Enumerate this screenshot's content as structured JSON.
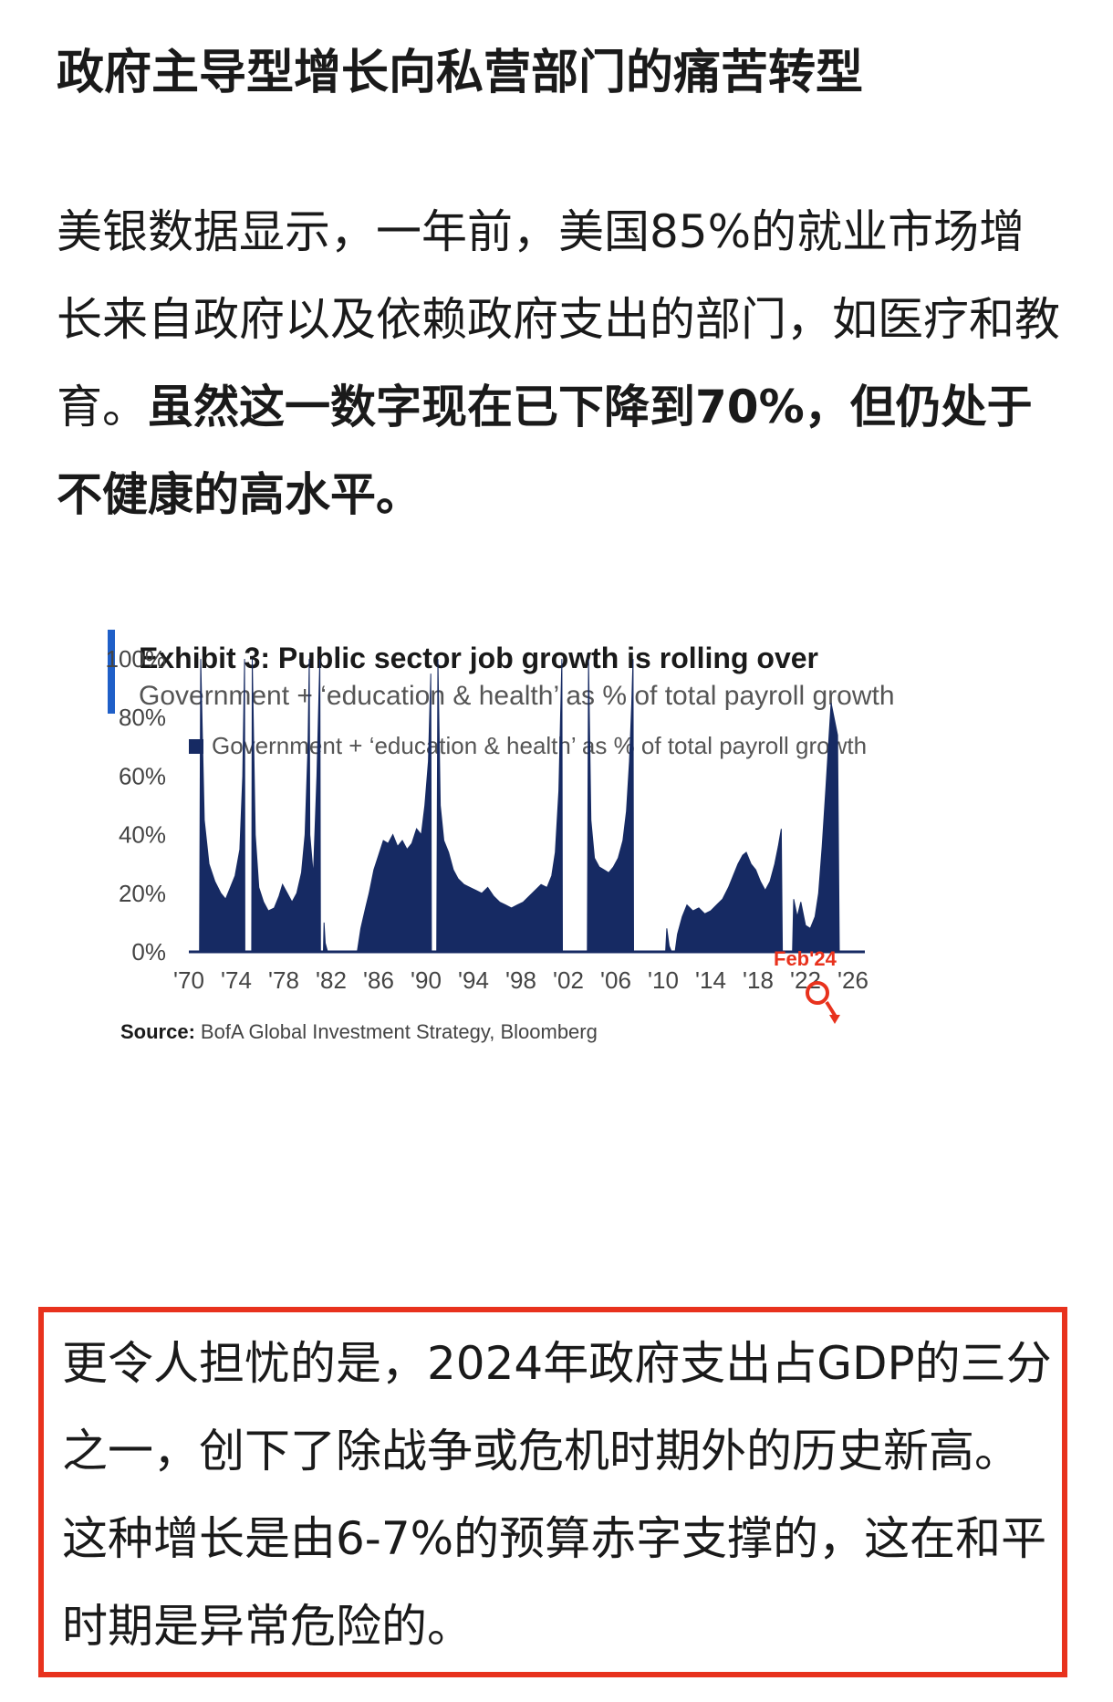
{
  "article": {
    "heading": "政府主导型增长向私营部门的痛苦转型",
    "para1_normal": "美银数据显示，一年前，美国85%的就业市场增长来自政府以及依赖政府支出的部门，如医疗和教育。",
    "para1_bold": "虽然这一数字现在已下降到70%，但仍处于不健康的高水平。",
    "para2": "更令人担忧的是，2024年政府支出占GDP的三分之一，创下了除战争或危机时期外的历史新高。这种增长是由6-7%的预算赤字支撑的，这在和平时期是异常危险的。"
  },
  "colors": {
    "accent_bar": "#1f5fc8",
    "series": "#162a63",
    "annotation": "#e8321d",
    "callout_border": "#e8321d"
  },
  "chart_data": {
    "type": "area",
    "title": "Exhibit 3: Public sector job growth is rolling over",
    "subtitle": "Government + ‘education & health’ as % of total payroll growth",
    "legend": "Government + ‘education & health’ as % of total payroll growth",
    "legend_position": "top",
    "annotation": "Feb'24",
    "source_label": "Source:",
    "source_text": "BofA Global Investment Strategy, Bloomberg",
    "xlim": [
      1970,
      2027
    ],
    "ylim": [
      0,
      100
    ],
    "grid": false,
    "x_ticks": [
      "'70",
      "'74",
      "'78",
      "'82",
      "'86",
      "'90",
      "'94",
      "'98",
      "'02",
      "'06",
      "'10",
      "'14",
      "'18",
      "'22",
      "'26"
    ],
    "y_ticks": [
      "100%",
      "80%",
      "60%",
      "40%",
      "20%",
      "0%"
    ],
    "series": [
      {
        "name": "Government + ‘education & health’ as % of total payroll growth",
        "segments": [
          [
            [
              1970.9,
              0
            ],
            [
              1971.0,
              100
            ],
            [
              1971.3,
              45
            ],
            [
              1971.7,
              30
            ],
            [
              1972.2,
              24
            ],
            [
              1972.7,
              20
            ],
            [
              1973.1,
              18
            ],
            [
              1973.5,
              22
            ],
            [
              1973.9,
              26
            ],
            [
              1974.3,
              35
            ],
            [
              1974.55,
              60
            ],
            [
              1974.7,
              100
            ],
            [
              1974.72,
              0
            ]
          ],
          [
            [
              1975.3,
              0
            ],
            [
              1975.35,
              100
            ],
            [
              1975.6,
              40
            ],
            [
              1975.9,
              22
            ],
            [
              1976.3,
              17
            ],
            [
              1976.7,
              14
            ],
            [
              1977.2,
              15
            ],
            [
              1977.6,
              19
            ],
            [
              1977.9,
              23
            ],
            [
              1978.3,
              20
            ],
            [
              1978.7,
              17
            ],
            [
              1979.1,
              20
            ],
            [
              1979.5,
              27
            ],
            [
              1979.8,
              40
            ],
            [
              1980.05,
              70
            ],
            [
              1980.15,
              100
            ],
            [
              1980.2,
              40
            ],
            [
              1980.5,
              26
            ],
            [
              1980.8,
              60
            ],
            [
              1981.05,
              100
            ],
            [
              1981.1,
              0
            ]
          ],
          [
            [
              1981.35,
              0
            ],
            [
              1981.4,
              10
            ],
            [
              1981.5,
              3
            ],
            [
              1981.7,
              0
            ]
          ],
          [
            [
              1984.2,
              0
            ],
            [
              1984.5,
              8
            ],
            [
              1984.9,
              15
            ],
            [
              1985.2,
              20
            ],
            [
              1985.6,
              28
            ],
            [
              1986.0,
              33
            ],
            [
              1986.4,
              38
            ],
            [
              1986.8,
              37
            ],
            [
              1987.2,
              40
            ],
            [
              1987.6,
              36
            ],
            [
              1988.0,
              38
            ],
            [
              1988.4,
              35
            ],
            [
              1988.8,
              37
            ],
            [
              1989.2,
              42
            ],
            [
              1989.6,
              40
            ],
            [
              1989.9,
              50
            ],
            [
              1990.2,
              65
            ],
            [
              1990.4,
              95
            ],
            [
              1990.45,
              0
            ]
          ],
          [
            [
              1990.9,
              0
            ],
            [
              1991.0,
              100
            ],
            [
              1991.2,
              50
            ],
            [
              1991.5,
              38
            ],
            [
              1991.9,
              34
            ],
            [
              1992.3,
              28
            ],
            [
              1992.7,
              25
            ],
            [
              1993.2,
              23
            ],
            [
              1993.7,
              22
            ],
            [
              1994.2,
              21
            ],
            [
              1994.7,
              20
            ],
            [
              1995.2,
              22
            ],
            [
              1995.7,
              19
            ],
            [
              1996.2,
              17
            ],
            [
              1996.7,
              16
            ],
            [
              1997.2,
              15
            ],
            [
              1997.7,
              16
            ],
            [
              1998.2,
              17
            ],
            [
              1998.7,
              19
            ],
            [
              1999.2,
              21
            ],
            [
              1999.7,
              23
            ],
            [
              2000.2,
              22
            ],
            [
              2000.6,
              26
            ],
            [
              2000.9,
              34
            ],
            [
              2001.2,
              55
            ],
            [
              2001.45,
              100
            ],
            [
              2001.5,
              0
            ]
          ],
          [
            [
              2003.6,
              0
            ],
            [
              2003.7,
              100
            ],
            [
              2003.9,
              45
            ],
            [
              2004.2,
              32
            ],
            [
              2004.6,
              29
            ],
            [
              2005.0,
              28
            ],
            [
              2005.4,
              27
            ],
            [
              2005.8,
              29
            ],
            [
              2006.2,
              32
            ],
            [
              2006.6,
              38
            ],
            [
              2006.9,
              48
            ],
            [
              2007.15,
              65
            ],
            [
              2007.35,
              85
            ],
            [
              2007.45,
              100
            ],
            [
              2007.5,
              0
            ]
          ],
          [
            [
              2010.2,
              0
            ],
            [
              2010.3,
              8
            ],
            [
              2010.5,
              2
            ],
            [
              2010.7,
              0
            ]
          ],
          [
            [
              2011.0,
              0
            ],
            [
              2011.2,
              6
            ],
            [
              2011.6,
              12
            ],
            [
              2012.0,
              16
            ],
            [
              2012.5,
              14
            ],
            [
              2013.0,
              15
            ],
            [
              2013.5,
              13
            ],
            [
              2014.0,
              14
            ],
            [
              2014.5,
              16
            ],
            [
              2015.0,
              18
            ],
            [
              2015.5,
              22
            ],
            [
              2015.9,
              26
            ],
            [
              2016.3,
              30
            ],
            [
              2016.7,
              33
            ],
            [
              2017.0,
              34
            ],
            [
              2017.4,
              30
            ],
            [
              2017.8,
              28
            ],
            [
              2018.2,
              24
            ],
            [
              2018.6,
              21
            ],
            [
              2019.0,
              24
            ],
            [
              2019.4,
              30
            ],
            [
              2019.7,
              36
            ],
            [
              2019.95,
              42
            ],
            [
              2020.05,
              0
            ]
          ],
          [
            [
              2020.9,
              0
            ],
            [
              2021.0,
              18
            ],
            [
              2021.3,
              12
            ],
            [
              2021.6,
              17
            ],
            [
              2022.0,
              9
            ],
            [
              2022.4,
              8
            ],
            [
              2022.8,
              12
            ],
            [
              2023.1,
              20
            ],
            [
              2023.4,
              36
            ],
            [
              2023.7,
              55
            ],
            [
              2023.95,
              72
            ],
            [
              2024.15,
              85
            ],
            [
              2024.4,
              80
            ],
            [
              2024.7,
              74
            ],
            [
              2024.85,
              0
            ]
          ]
        ]
      }
    ]
  }
}
